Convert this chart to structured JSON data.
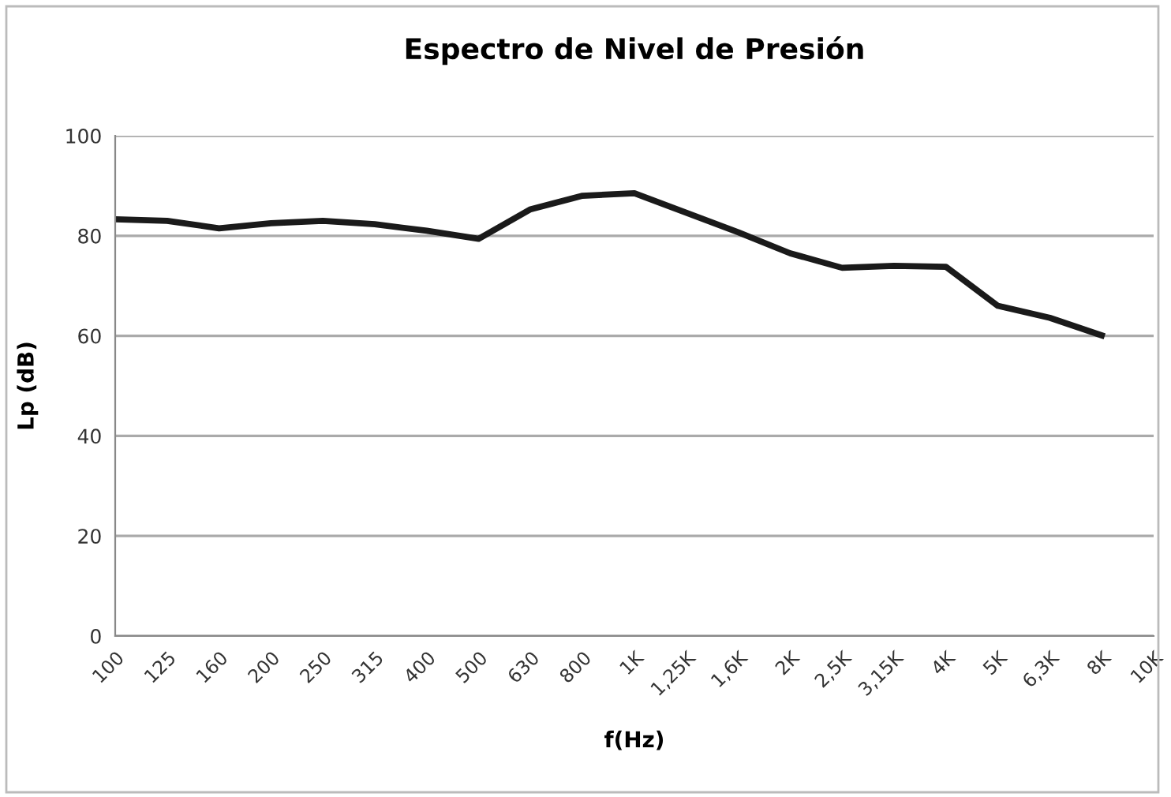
{
  "chart_data": {
    "type": "line",
    "title": "Espectro de Nivel de Presión",
    "xlabel": "f(Hz)",
    "ylabel": "Lp (dB)",
    "categories": [
      "100",
      "125",
      "160",
      "200",
      "250",
      "315",
      "400",
      "500",
      "630",
      "800",
      "1K",
      "1,25K",
      "1,6K",
      "2K",
      "2,5K",
      "3,15K",
      "4K",
      "5K",
      "6,3K",
      "8K",
      "10K"
    ],
    "series": [
      {
        "color": "#1a1a1a",
        "values": [
          83.3,
          83,
          81.5,
          82.5,
          83,
          82.3,
          81,
          79.4,
          85.3,
          88,
          88.5,
          84.6,
          80.7,
          76.5,
          73.6,
          74,
          73.8,
          66,
          63.6,
          60.1,
          null
        ]
      }
    ],
    "ylim": [
      0,
      100
    ],
    "yticks": [
      0,
      20,
      40,
      60,
      80,
      100
    ],
    "grid": "y",
    "marker": "none",
    "line_style": "solid"
  }
}
